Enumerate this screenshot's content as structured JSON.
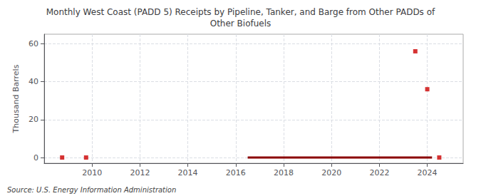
{
  "chart_data": {
    "type": "scatter",
    "title": "Monthly West Coast (PADD 5) Receipts by Pipeline, Tanker, and Barge from Other PADDs of\nOther Biofuels",
    "ylabel": "Thousand Barrels",
    "annotations": [
      "Source: U.S. Energy Information Administration"
    ],
    "series": [
      {
        "type": "line",
        "color": "#8b0000",
        "x": [
          2016.5,
          2024.2
        ],
        "values": [
          0,
          0
        ]
      },
      {
        "type": "scatter",
        "color": "#cc0000",
        "marker": "square",
        "x": [
          2008.75,
          2009.75,
          2023.5,
          2024.0,
          2024.5
        ],
        "values": [
          0,
          0,
          56,
          36,
          0
        ]
      }
    ],
    "xlim": [
      2008.0,
      2025.5
    ],
    "xticks": [
      2010,
      2012,
      2014,
      2016,
      2018,
      2020,
      2022,
      2024
    ],
    "ylim": [
      -3,
      65
    ],
    "yticks": [
      0,
      20,
      40,
      60
    ],
    "grid": true
  }
}
